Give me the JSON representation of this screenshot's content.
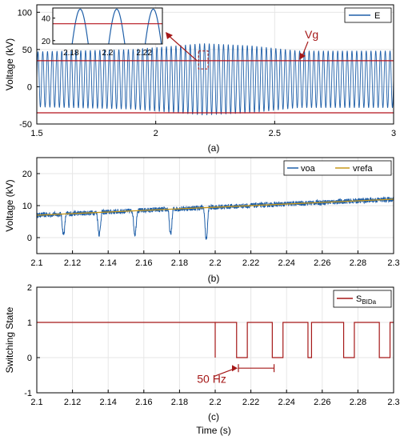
{
  "colors": {
    "wave": "#1f5fa8",
    "ref": "#b5121b",
    "vref": "#c8981a",
    "ann": "#a51818",
    "axis": "#000000",
    "grid": "#e6e6e6"
  },
  "labels": {
    "a": "(a)",
    "b": "(b)",
    "c": "(c)",
    "xlabel": "Time (s)"
  },
  "chart_data": [
    {
      "type": "line",
      "ylabel": "Voltage (kV)",
      "xlim": [
        1.5,
        3
      ],
      "ylim": [
        -50,
        110
      ],
      "xticks": [
        "1.5",
        "2",
        "2.5",
        "3"
      ],
      "yticks": [
        "-50",
        "0",
        "50",
        "100"
      ],
      "grid": true,
      "legend_position": "top-right",
      "series": [
        {
          "name": "E",
          "kind": "sinusoid",
          "frequency_hz": 50,
          "center_kv": 10,
          "amplitude_kv": [
            [
              1.5,
              37
            ],
            [
              1.9,
              40
            ],
            [
              2.2,
              48
            ],
            [
              2.4,
              45
            ],
            [
              2.6,
              38
            ],
            [
              3.0,
              38
            ]
          ]
        },
        {
          "kind": "level",
          "values_kv": [
            35,
            -35
          ]
        }
      ],
      "annotations": [
        {
          "text": "Vg"
        }
      ],
      "inset": {
        "xlim": [
          2.17,
          2.23
        ],
        "ylim": [
          17,
          49
        ],
        "xticks": [
          "2.18",
          "2.2",
          "2.22"
        ],
        "yticks": [
          "20",
          "40"
        ],
        "peak_kv": 48,
        "ref_kv": 35
      }
    },
    {
      "type": "line",
      "ylabel": "Voltage (kV)",
      "xlim": [
        2.1,
        2.3
      ],
      "ylim": [
        -5,
        25
      ],
      "xticks": [
        "2.1",
        "2.12",
        "2.14",
        "2.16",
        "2.18",
        "2.2",
        "2.22",
        "2.24",
        "2.26",
        "2.28",
        "2.3"
      ],
      "yticks": [
        "0",
        "10",
        "20"
      ],
      "grid": true,
      "legend_position": "top-right",
      "series": [
        {
          "name": "voa",
          "kind": "tracking",
          "start_kv": 7.3,
          "end_kv": 12,
          "dips": [
            {
              "t": 2.115,
              "min_kv": 1
            },
            {
              "t": 2.135,
              "min_kv": 1
            },
            {
              "t": 2.155,
              "min_kv": 1
            },
            {
              "t": 2.175,
              "min_kv": 1
            },
            {
              "t": 2.195,
              "min_kv": -0.5
            }
          ]
        },
        {
          "name": "vrefa",
          "kind": "ramp",
          "start_kv": 7,
          "end_kv": 12
        }
      ]
    },
    {
      "type": "line",
      "ylabel": "Switching State",
      "xlabel": "Time (s)",
      "xlim": [
        2.1,
        2.3
      ],
      "ylim": [
        -1,
        2
      ],
      "xticks": [
        "2.1",
        "2.12",
        "2.14",
        "2.16",
        "2.18",
        "2.2",
        "2.22",
        "2.24",
        "2.26",
        "2.28",
        "2.3"
      ],
      "yticks": [
        "-1",
        "0",
        "1",
        "2"
      ],
      "grid": true,
      "legend_position": "top-right",
      "series": [
        {
          "name": "S",
          "name_subscript": "BIDa",
          "kind": "step",
          "initial": 1,
          "zero_intervals": [
            [
              2.2,
              2.2
            ],
            [
              2.212,
              2.218
            ],
            [
              2.232,
              2.238
            ],
            [
              2.252,
              2.254
            ],
            [
              2.272,
              2.278
            ],
            [
              2.292,
              2.298
            ]
          ]
        }
      ],
      "annotations": [
        {
          "text": "50 Hz",
          "x_from": 2.213,
          "x_to": 2.233
        }
      ]
    }
  ]
}
